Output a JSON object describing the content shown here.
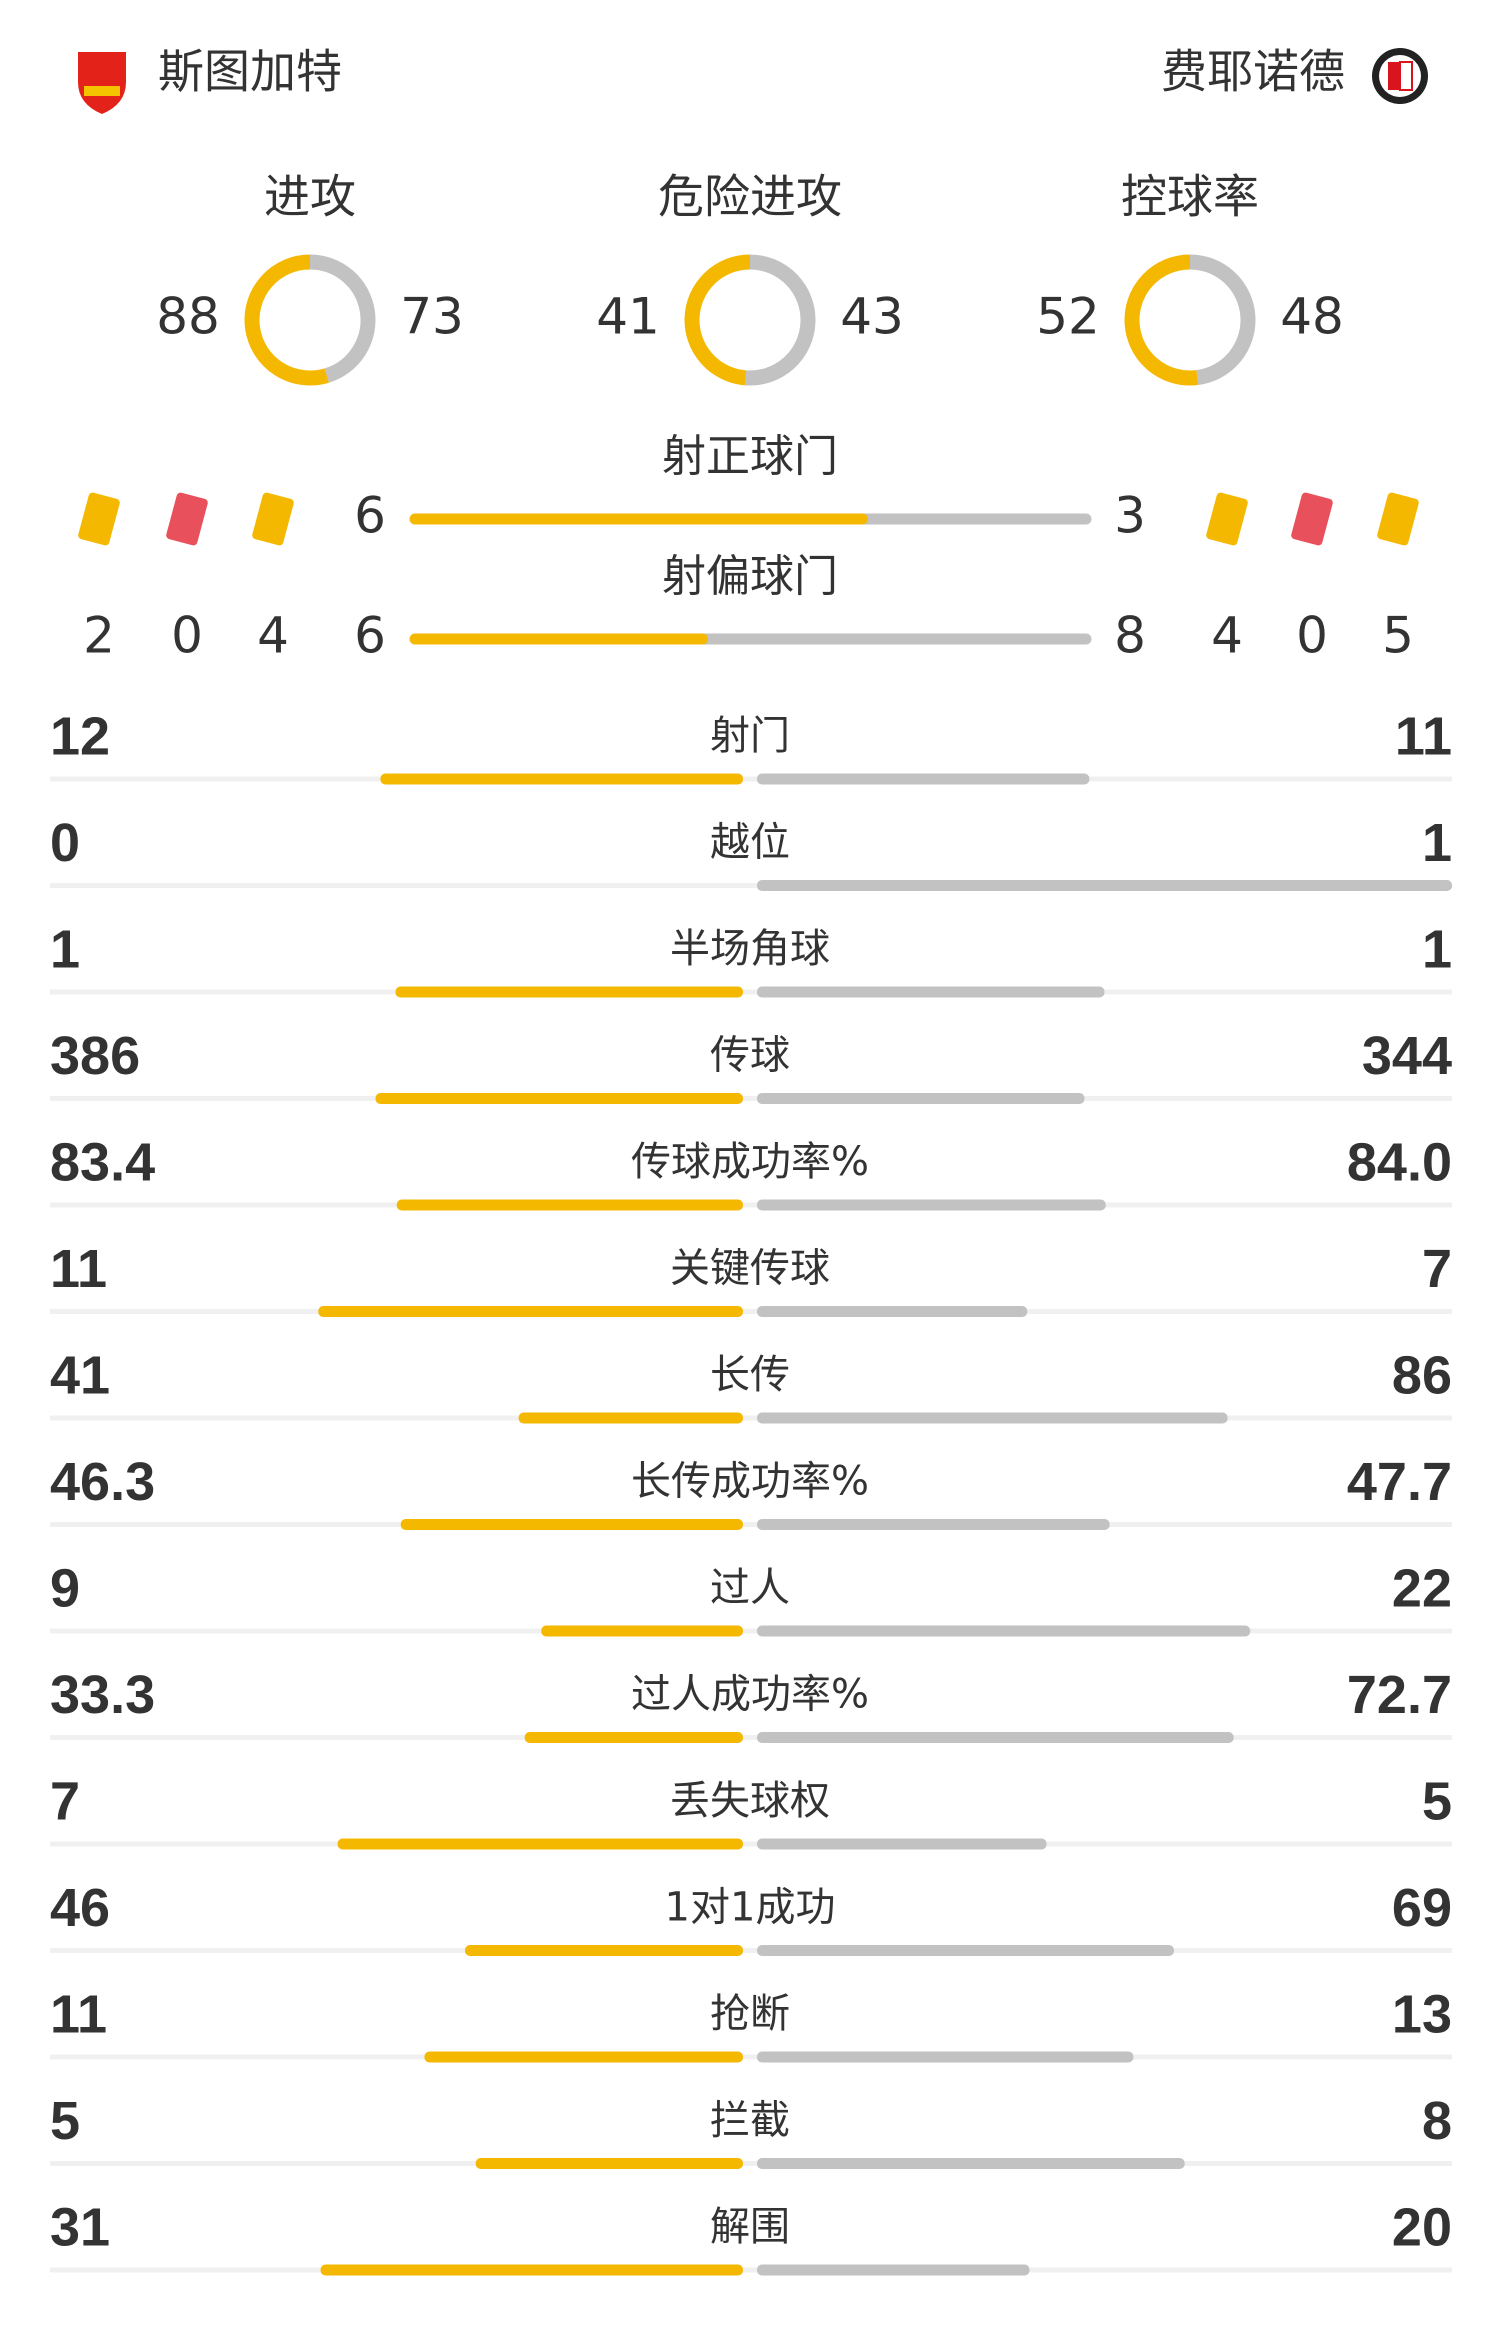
{
  "header": {
    "home": "斯图加特",
    "away": "费耶诺德"
  },
  "rings": [
    {
      "label": "进攻",
      "home": 88,
      "away": 73
    },
    {
      "label": "危险进攻",
      "home": 41,
      "away": 43
    },
    {
      "label": "控球率",
      "home": 52,
      "away": 48
    }
  ],
  "shots": [
    {
      "label": "射正球门",
      "home": 6,
      "away": 3
    },
    {
      "label": "射偏球门",
      "home": 6,
      "away": 8
    }
  ],
  "discipline": {
    "home": {
      "corners": 2,
      "red": 0,
      "yellow": 4
    },
    "away": {
      "yellow": 4,
      "red": 0,
      "corners": 5
    }
  },
  "stats": [
    {
      "label": "射门",
      "home": 12,
      "away": 11
    },
    {
      "label": "越位",
      "home": 0,
      "away": 1
    },
    {
      "label": "半场角球",
      "home": 1,
      "away": 1
    },
    {
      "label": "传球",
      "home": 386,
      "away": 344
    },
    {
      "label": "传球成功率%",
      "home": 83.4,
      "away": {
        "value": 84,
        "label": "84.0"
      }
    },
    {
      "label": "关键传球",
      "home": 11,
      "away": 7
    },
    {
      "label": "长传",
      "home": 41,
      "away": 86
    },
    {
      "label": "长传成功率%",
      "home": 46.3,
      "away": 47.7
    },
    {
      "label": "过人",
      "home": 9,
      "away": 22
    },
    {
      "label": "过人成功率%",
      "home": 33.3,
      "away": 72.7
    },
    {
      "label": "丢失球权",
      "home": 7,
      "away": 5
    },
    {
      "label": "1对1成功",
      "home": 46,
      "away": 69
    },
    {
      "label": "抢断",
      "home": 11,
      "away": 13
    },
    {
      "label": "拦截",
      "home": 5,
      "away": 8
    },
    {
      "label": "解围",
      "home": 31,
      "away": 20
    }
  ]
}
